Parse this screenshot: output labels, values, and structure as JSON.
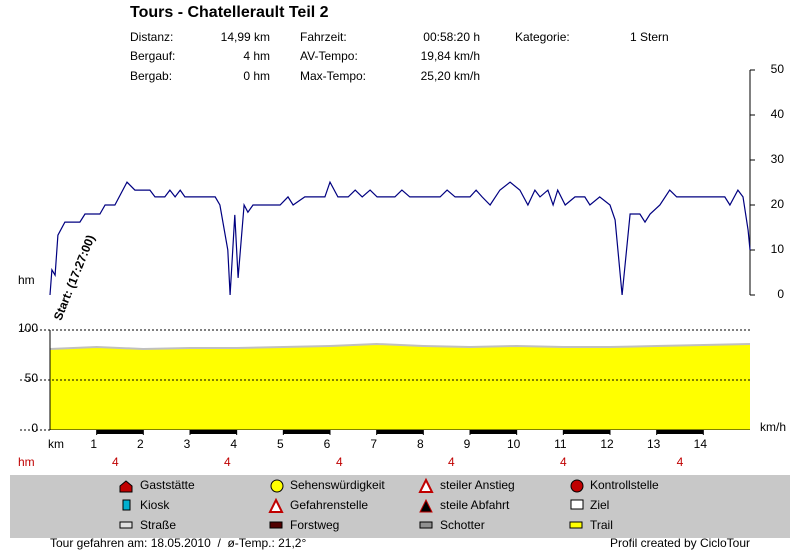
{
  "header": {
    "title": "Tours - Chatellerault Teil 2",
    "rows": [
      [
        {
          "label": "Distanz:",
          "value": "14,99 km"
        },
        {
          "label": "Fahrzeit:",
          "value": "00:58:20 h"
        },
        {
          "label": "Kategorie:",
          "value": "1 Stern"
        }
      ],
      [
        {
          "label": "Bergauf:",
          "value": "4 hm"
        },
        {
          "label": "AV-Tempo:",
          "value": "19,84 km/h"
        }
      ],
      [
        {
          "label": "Bergab:",
          "value": "0 hm"
        },
        {
          "label": "Max-Tempo:",
          "value": "25,20 km/h"
        }
      ]
    ]
  },
  "chart_data": [
    {
      "type": "line",
      "color": "#000080",
      "y_label": "km/h",
      "annotation": "Start: (17:27:00)",
      "xlim": [
        0,
        15
      ],
      "y2lim": [
        0,
        50
      ],
      "y2ticks": [
        0,
        10,
        20,
        30,
        40,
        50
      ],
      "x": [
        0,
        0.04,
        0.11,
        0.17,
        0.32,
        0.64,
        0.75,
        1.07,
        1.18,
        1.39,
        1.65,
        1.82,
        2.14,
        2.25,
        2.46,
        2.57,
        2.68,
        2.79,
        2.89,
        3.54,
        3.64,
        3.81,
        3.86,
        3.96,
        4.03,
        4.16,
        4.24,
        4.35,
        4.93,
        5.1,
        5.21,
        5.46,
        5.89,
        6.0,
        6.17,
        6.39,
        6.54,
        6.69,
        6.86,
        7.01,
        7.39,
        7.54,
        7.71,
        8.36,
        8.51,
        8.68,
        9.0,
        9.13,
        9.26,
        9.43,
        9.64,
        9.86,
        10.07,
        10.24,
        10.39,
        10.5,
        10.67,
        10.78,
        10.88,
        11.04,
        11.25,
        11.46,
        11.57,
        11.78,
        12.0,
        12.11,
        12.26,
        12.43,
        12.64,
        12.75,
        12.86,
        13.07,
        13.28,
        13.43,
        14.46,
        14.57,
        14.74,
        14.85,
        14.96,
        15.0
      ],
      "values": [
        0,
        5.6,
        4.4,
        13.3,
        16.2,
        16.2,
        18,
        18,
        20,
        20,
        25.1,
        23.3,
        23.3,
        21.8,
        21.8,
        23.3,
        21.8,
        23.3,
        21.8,
        21.8,
        20,
        10,
        0,
        17.8,
        3.8,
        20,
        18.4,
        20,
        20,
        21.8,
        20,
        21.8,
        21.8,
        25.1,
        21.8,
        21.8,
        23.3,
        21.8,
        23.3,
        21.8,
        21.8,
        23.3,
        21.8,
        21.8,
        23.3,
        21.8,
        21.8,
        23.3,
        21.8,
        20,
        23.3,
        25.1,
        23.3,
        20,
        23.3,
        21.8,
        23.3,
        20,
        23.3,
        20,
        21.8,
        21.8,
        20,
        21.8,
        20,
        16.7,
        0,
        18,
        18,
        16.2,
        18,
        20,
        23.3,
        21.8,
        21.8,
        20,
        23.3,
        21.8,
        14.4,
        10
      ]
    },
    {
      "type": "area",
      "color": "#ffff00",
      "edge_color": "#c0c0c0",
      "y_label": "hm",
      "x_label": "km",
      "xlim": [
        0,
        15
      ],
      "xticks": [
        1,
        2,
        3,
        4,
        5,
        6,
        7,
        8,
        9,
        10,
        11,
        12,
        13,
        14
      ],
      "ylim": [
        0,
        100
      ],
      "yticks": [
        0,
        50,
        100
      ],
      "grid": true,
      "x": [
        0,
        1,
        2,
        3,
        4,
        5,
        6,
        7,
        8,
        9,
        10,
        11,
        12,
        13,
        14,
        15
      ],
      "values": [
        81,
        83,
        81,
        82,
        82,
        83,
        84,
        86,
        84,
        83,
        84,
        83,
        83,
        84,
        85,
        86
      ],
      "climb_label": "hm",
      "climb_x": [
        1.4,
        3.8,
        6.2,
        8.6,
        11.0,
        13.5
      ],
      "climb_values": [
        4,
        4,
        4,
        4,
        4,
        4
      ]
    }
  ],
  "legend": [
    [
      "Gaststätte",
      "Sehenswürdigkeit",
      "steiler Anstieg",
      "Kontrollstelle"
    ],
    [
      "Kiosk",
      "Gefahrenstelle",
      "steile Abfahrt",
      "Ziel"
    ],
    [
      "Straße",
      "Forstweg",
      "Schotter",
      "Trail"
    ]
  ],
  "footer": {
    "left": "Tour gefahren am: 18.05.2010  /  ø-Temp.: 21,2°",
    "right": "Profil created by CicloTour"
  }
}
